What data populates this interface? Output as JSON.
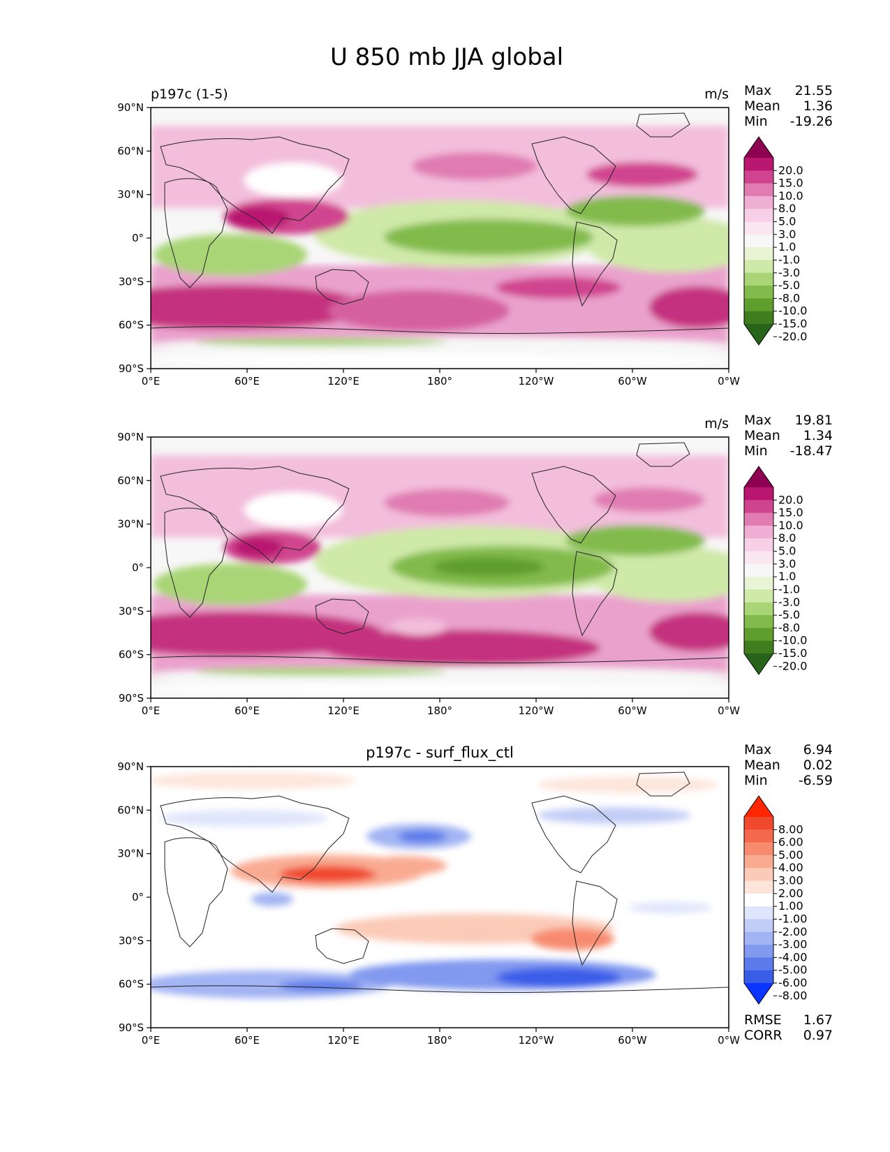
{
  "chart_data": {
    "type": "heatmap",
    "title": "U 850 mb JJA global",
    "x_ticks": [
      "0°E",
      "60°E",
      "120°E",
      "180°",
      "120°W",
      "60°W",
      "0°W"
    ],
    "y_ticks": [
      "90°N",
      "60°N",
      "30°N",
      "0°",
      "30°S",
      "60°S",
      "90°S"
    ],
    "xlim": [
      0,
      360
    ],
    "ylim": [
      -90,
      90
    ],
    "panels": [
      {
        "name": "test",
        "left_title": "p197c (1-5)",
        "center_title": "",
        "units": "m/s",
        "stats": [
          {
            "label": "Max",
            "value": "21.55"
          },
          {
            "label": "Mean",
            "value": "1.36"
          },
          {
            "label": "Min",
            "value": "-19.26"
          }
        ],
        "colorbar": {
          "levels": [
            "20.0",
            "15.0",
            "10.0",
            "8.0",
            "5.0",
            "3.0",
            "1.0",
            "-1.0",
            "-3.0",
            "-5.0",
            "-8.0",
            "-10.0",
            "-15.0",
            "-20.0"
          ],
          "colors": [
            "#8e0152",
            "#b8166f",
            "#d0448f",
            "#e07cb2",
            "#efafd4",
            "#f7cfe6",
            "#fae6f1",
            "#f7f7f7",
            "#e8f4d3",
            "#cfe9a8",
            "#a9d576",
            "#82bb4c",
            "#5f9e2d",
            "#3f7d1e",
            "#276419"
          ]
        },
        "bottom_stats": []
      },
      {
        "name": "reference",
        "left_title": "",
        "center_title": "",
        "units": "m/s",
        "stats": [
          {
            "label": "Max",
            "value": "19.81"
          },
          {
            "label": "Mean",
            "value": "1.34"
          },
          {
            "label": "Min",
            "value": "-18.47"
          }
        ],
        "colorbar": {
          "levels": [
            "20.0",
            "15.0",
            "10.0",
            "8.0",
            "5.0",
            "3.0",
            "1.0",
            "-1.0",
            "-3.0",
            "-5.0",
            "-8.0",
            "-10.0",
            "-15.0",
            "-20.0"
          ],
          "colors": [
            "#8e0152",
            "#b8166f",
            "#d0448f",
            "#e07cb2",
            "#efafd4",
            "#f7cfe6",
            "#fae6f1",
            "#f7f7f7",
            "#e8f4d3",
            "#cfe9a8",
            "#a9d576",
            "#82bb4c",
            "#5f9e2d",
            "#3f7d1e",
            "#276419"
          ]
        },
        "bottom_stats": []
      },
      {
        "name": "difference",
        "left_title": "",
        "center_title": "p197c - surf_flux_ctl",
        "units": "",
        "stats": [
          {
            "label": "Max",
            "value": "6.94"
          },
          {
            "label": "Mean",
            "value": "0.02"
          },
          {
            "label": "Min",
            "value": "-6.59"
          }
        ],
        "colorbar": {
          "levels": [
            "8.00",
            "6.00",
            "5.00",
            "4.00",
            "3.00",
            "2.00",
            "1.00",
            "-1.00",
            "-2.00",
            "-3.00",
            "-4.00",
            "-5.00",
            "-6.00",
            "-8.00"
          ],
          "colors": [
            "#ff2600",
            "#f04a2e",
            "#f4694d",
            "#f78b6f",
            "#f9ab92",
            "#fbcbb8",
            "#fde5db",
            "#ffffff",
            "#dfe5fb",
            "#c2cdf7",
            "#a2b4f3",
            "#8199ef",
            "#5c7bea",
            "#3a5de8",
            "#0a34ff"
          ]
        },
        "bottom_stats": [
          {
            "label": "RMSE",
            "value": "1.67"
          },
          {
            "label": "CORR",
            "value": "0.97"
          }
        ]
      }
    ]
  }
}
